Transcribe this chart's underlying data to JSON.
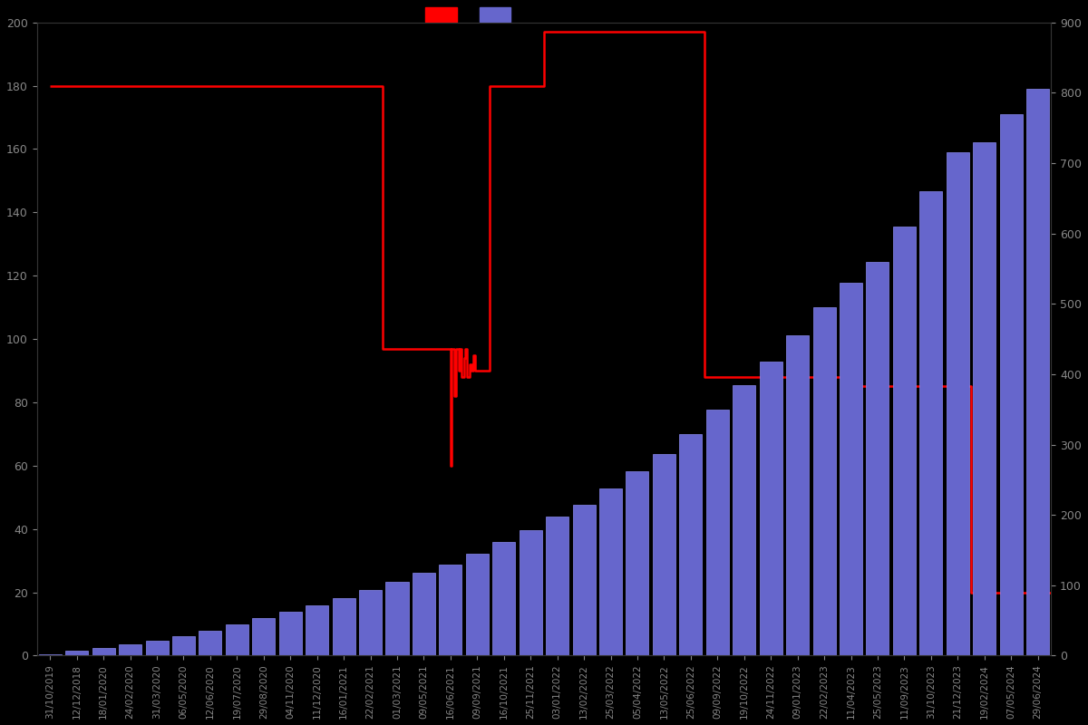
{
  "background_color": "#000000",
  "bar_color": "#6666cc",
  "bar_edge_color": "#8888ee",
  "line_color": "#ff0000",
  "text_color": "#888888",
  "left_ylim": [
    0,
    200
  ],
  "right_ylim": [
    0,
    900
  ],
  "left_yticks": [
    0,
    20,
    40,
    60,
    80,
    100,
    120,
    140,
    160,
    180,
    200
  ],
  "right_yticks": [
    0,
    100,
    200,
    300,
    400,
    500,
    600,
    700,
    800,
    900
  ],
  "dates": [
    "31/10/2019",
    "12/12/2018",
    "18/01/2020",
    "24/02/2020",
    "31/03/2020",
    "06/05/2020",
    "12/06/2020",
    "19/07/2020",
    "29/08/2020",
    "04/11/2020",
    "11/12/2020",
    "16/01/2021",
    "22/02/2021",
    "01/03/2021",
    "09/05/2021",
    "16/06/2021",
    "09/09/2021",
    "16/10/2021",
    "25/11/2021",
    "03/01/2022",
    "13/02/2022",
    "25/03/2022",
    "05/04/2022",
    "13/05/2022",
    "25/06/2022",
    "09/09/2022",
    "19/10/2022",
    "24/11/2022",
    "09/01/2023",
    "22/02/2023",
    "11/04/2023",
    "25/05/2023",
    "11/09/2023",
    "31/10/2023",
    "21/12/2023",
    "19/02/2024",
    "07/05/2024",
    "29/06/2024"
  ],
  "bar_values": [
    2,
    7,
    11,
    16,
    21,
    27,
    35,
    44,
    53,
    63,
    72,
    82,
    93,
    105,
    118,
    130,
    145,
    162,
    178,
    197,
    215,
    238,
    262,
    287,
    315,
    350,
    385,
    418,
    455,
    495,
    530,
    560,
    610,
    660,
    715,
    730,
    770,
    805
  ],
  "price_x": [
    0,
    12.45,
    12.45,
    15.0,
    15.0,
    15.05,
    15.05,
    15.15,
    15.15,
    15.2,
    15.2,
    15.3,
    15.3,
    15.35,
    15.35,
    15.42,
    15.42,
    15.5,
    15.5,
    15.55,
    15.55,
    15.62,
    15.62,
    15.7,
    15.7,
    15.78,
    15.78,
    15.85,
    15.85,
    15.92,
    15.92,
    16.45,
    16.45,
    18.5,
    18.5,
    24.5,
    24.5,
    29.95,
    29.95,
    30.05,
    30.05,
    34.5,
    34.5,
    37.5
  ],
  "price_y": [
    180,
    180,
    97,
    97,
    60,
    60,
    97,
    97,
    82,
    82,
    97,
    97,
    90,
    90,
    97,
    97,
    88,
    88,
    94,
    94,
    97,
    97,
    88,
    88,
    92,
    92,
    90,
    90,
    95,
    95,
    90,
    90,
    180,
    180,
    197,
    197,
    88,
    88,
    35,
    35,
    85,
    85,
    20,
    20
  ]
}
